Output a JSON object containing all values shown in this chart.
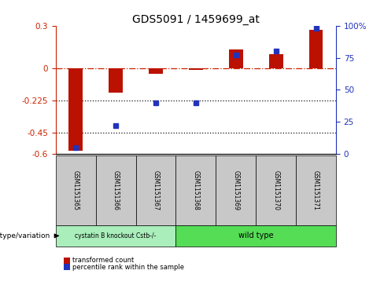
{
  "title": "GDS5091 / 1459699_at",
  "samples": [
    "GSM1151365",
    "GSM1151366",
    "GSM1151367",
    "GSM1151368",
    "GSM1151369",
    "GSM1151370",
    "GSM1151371"
  ],
  "red_bars": [
    -0.58,
    -0.17,
    -0.04,
    -0.01,
    0.135,
    0.1,
    0.27
  ],
  "blue_percentiles": [
    5,
    22,
    40,
    40,
    77,
    80,
    98
  ],
  "ylim_left": [
    -0.6,
    0.3
  ],
  "yticks_left": [
    -0.6,
    -0.45,
    -0.225,
    0.0,
    0.3
  ],
  "ytick_labels_left": [
    "-0.6",
    "-0.45",
    "-0.225",
    "0",
    "0.3"
  ],
  "ylim_right": [
    0,
    100
  ],
  "yticks_right": [
    0,
    25,
    50,
    75,
    100
  ],
  "ytick_labels_right": [
    "0",
    "25",
    "50",
    "75",
    "100%"
  ],
  "hline_y": 0.0,
  "dotted_lines": [
    -0.225,
    -0.45
  ],
  "group1_label": "cystatin B knockout Cstb-/-",
  "group2_label": "wild type",
  "group1_count": 3,
  "group2_count": 4,
  "group_label": "genotype/variation",
  "legend_red": "transformed count",
  "legend_blue": "percentile rank within the sample",
  "bar_color_red": "#BB1100",
  "bar_color_blue": "#2233BB",
  "group1_color": "#AAEEBB",
  "group2_color": "#55DD55",
  "bg_gray": "#C8C8C8",
  "zero_line_color": "#CC2200",
  "dotted_line_color": "#111111"
}
